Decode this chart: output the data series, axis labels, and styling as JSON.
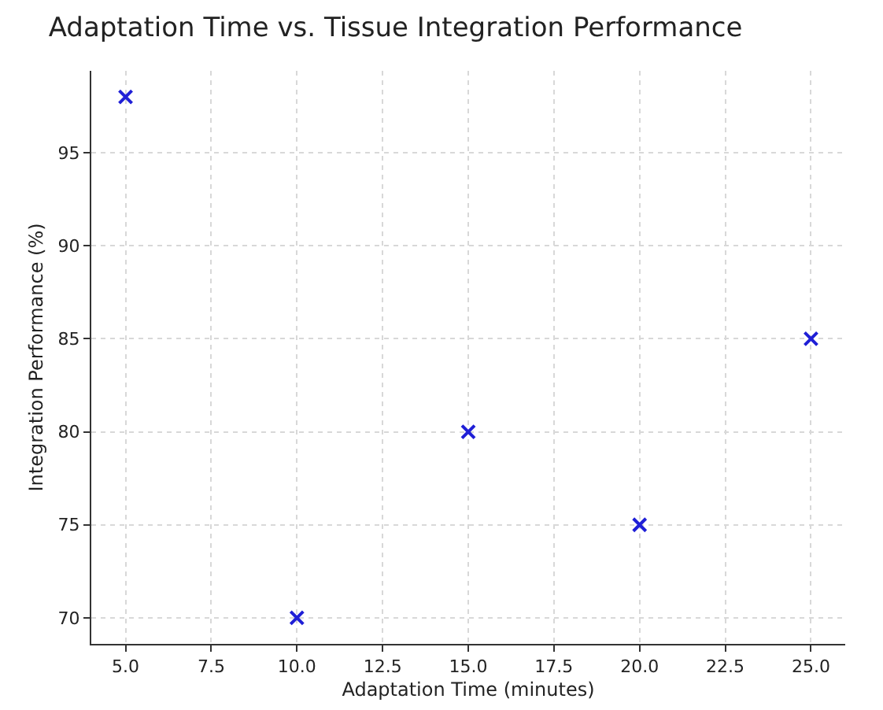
{
  "chart_data": {
    "type": "scatter",
    "title": "Adaptation Time vs. Tissue Integration Performance",
    "xlabel": "Adaptation Time (minutes)",
    "ylabel": "Integration Performance (%)",
    "x": [
      5,
      10,
      15,
      20,
      25
    ],
    "series": [
      {
        "color": "#1f1fd6",
        "values": [
          98,
          70,
          80,
          75,
          85
        ]
      }
    ],
    "xlim": [
      4,
      26
    ],
    "xticks": [
      {
        "value": 5,
        "label": "5.0"
      },
      {
        "value": 7.5,
        "label": "7.5"
      },
      {
        "value": 10,
        "label": "10.0"
      },
      {
        "value": 12.5,
        "label": "12.5"
      },
      {
        "value": 15,
        "label": "15.0"
      },
      {
        "value": 17.5,
        "label": "17.5"
      },
      {
        "value": 20,
        "label": "20.0"
      },
      {
        "value": 22.5,
        "label": "22.5"
      },
      {
        "value": 25,
        "label": "25.0"
      }
    ],
    "ylim": [
      68.6,
      99.4
    ],
    "yticks": [
      70,
      75,
      80,
      85,
      90,
      95
    ],
    "grid": true,
    "marker": "cross",
    "legend": false
  }
}
